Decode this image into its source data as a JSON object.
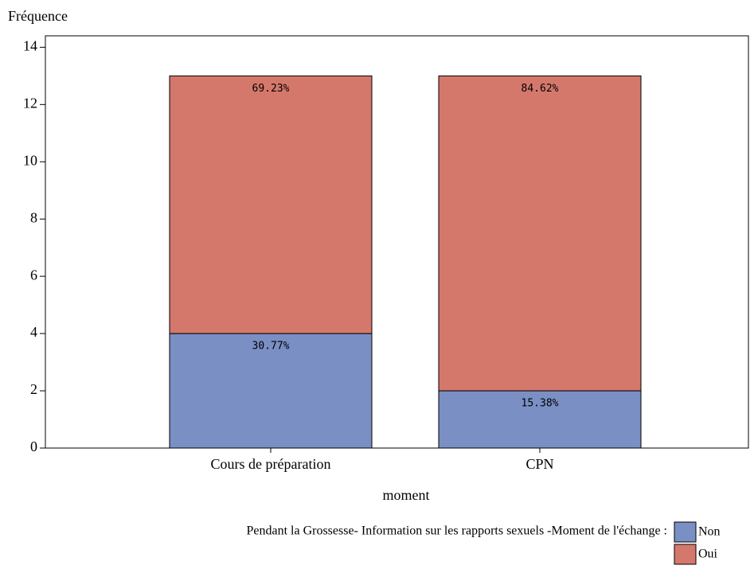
{
  "chart_data": {
    "type": "stacked_bar",
    "y_label": "Fréquence",
    "x_label": "moment",
    "legend_title": "Pendant la Grossesse- Information sur les rapports sexuels -Moment de l'échange :",
    "categories": [
      "Cours de préparation",
      "CPN"
    ],
    "series": [
      {
        "name": "Non",
        "color": "#7a8fc3",
        "values": [
          4,
          2
        ],
        "percent_labels": [
          "30.77%",
          "15.38%"
        ]
      },
      {
        "name": "Oui",
        "color": "#d5786c",
        "values": [
          9,
          11
        ],
        "percent_labels": [
          "69.23%",
          "84.62%"
        ]
      }
    ],
    "ylim": [
      0,
      14.4
    ],
    "yticks": [
      0,
      2,
      4,
      6,
      8,
      10,
      12,
      14
    ]
  }
}
